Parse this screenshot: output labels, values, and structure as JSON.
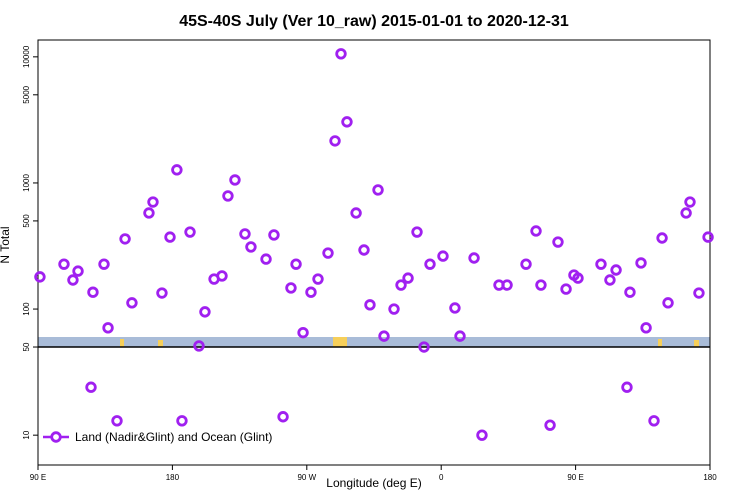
{
  "chart_data": {
    "type": "scatter",
    "title": "45S-40S July (Ver 10_raw)   2015-01-01 to 2020-12-31",
    "x_label": "Longitude (deg E)",
    "y_label": "N Total",
    "log_y": true,
    "legend_position": "bottom-left",
    "xlim": [
      90,
      540
    ],
    "xticks": [
      {
        "value": 90,
        "label": "90 E"
      },
      180,
      {
        "value": 270,
        "label": "90 W"
      },
      {
        "value": 360,
        "label": "0"
      },
      {
        "value": 450,
        "label": "90 E"
      },
      {
        "value": 540,
        "label": "180"
      }
    ],
    "ylim": [
      5.8,
      13600
    ],
    "yticks": [
      10,
      50,
      100,
      500,
      1000,
      5000,
      10000
    ],
    "series": [
      {
        "name": "Land (Nadir&Glint) and Ocean (Glint)",
        "color": "#a020f0",
        "x": [
          91.3,
          107.4,
          113.4,
          116.8,
          126.8,
          125.5,
          134.2,
          136.9,
          142.9,
          148.3,
          152.9,
          164.3,
          167,
          173,
          178.4,
          183,
          186.4,
          191.8,
          197.8,
          201.8,
          207.9,
          213.2,
          217.2,
          221.9,
          228.6,
          232.6,
          242.7,
          248,
          254.1,
          259.4,
          262.8,
          267.5,
          272.8,
          277.5,
          284.2,
          288.9,
          292.9,
          296.9,
          303,
          308.3,
          312.3,
          317.7,
          321.7,
          328.4,
          333.1,
          337.8,
          343.8,
          348.5,
          352.5,
          361.2,
          369.2,
          372.6,
          382,
          387.3,
          398.7,
          404.1,
          416.8,
          423.5,
          426.8,
          432.9,
          438.2,
          443.6,
          448.9,
          451.6,
          467,
          473,
          477.1,
          484.4,
          486.4,
          493.8,
          497.2,
          502.5,
          507.9,
          511.9,
          524,
          526.6,
          532.6,
          538.7
        ],
        "values": [
          180,
          227,
          170,
          200,
          136,
          24,
          227,
          71,
          13,
          360,
          112,
          578,
          706,
          134,
          372,
          1270,
          13,
          408,
          51,
          95,
          173,
          183,
          789,
          1056,
          394,
          311,
          249,
          387,
          14,
          147,
          227,
          65,
          136,
          173,
          278,
          2155,
          10570,
          3050,
          578,
          294,
          108,
          880,
          61,
          100,
          155,
          176,
          408,
          50,
          227,
          263,
          102,
          61,
          254,
          10,
          155,
          155,
          227,
          416,
          155,
          12,
          340,
          144,
          186,
          176,
          227,
          170,
          204,
          24,
          136,
          232,
          71,
          13,
          366,
          112,
          578,
          706,
          134,
          372
        ]
      }
    ]
  }
}
